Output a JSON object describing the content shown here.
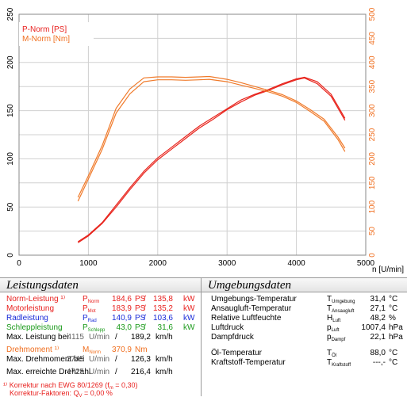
{
  "colors": {
    "p_curve": "#e8241c",
    "m_curve": "#f07a2a",
    "label_red": "#e8201e",
    "label_blue": "#1a2bd8",
    "label_green": "#1a9a1a",
    "label_orange": "#f06e1e",
    "grid": "#d0d0d0"
  },
  "chart_data": {
    "type": "line",
    "xlabel": "n [U/min]",
    "xlim": [
      0,
      5000
    ],
    "x_ticks": [
      "0",
      "1000",
      "2000",
      "3000",
      "4000",
      "5000"
    ],
    "y_left_lim": [
      0,
      250
    ],
    "y_left_ticks": [
      "0",
      "50",
      "100",
      "150",
      "200",
      "250"
    ],
    "y_right_lim": [
      0,
      500
    ],
    "y_right_ticks": [
      "0",
      "50",
      "100",
      "150",
      "200",
      "250",
      "300",
      "350",
      "400",
      "450",
      "500"
    ],
    "grid": true,
    "legend": {
      "position": "top-left",
      "entries": [
        "P-Norm [PS]",
        "M-Norm [Nm]"
      ]
    },
    "series": [
      {
        "name": "P-Norm [PS]",
        "axis": "left",
        "x": [
          850,
          1000,
          1200,
          1400,
          1600,
          1800,
          2000,
          2200,
          2400,
          2600,
          2800,
          3000,
          3200,
          3400,
          3600,
          3800,
          4000,
          4115,
          4300,
          4500,
          4700
        ],
        "y": [
          14,
          21,
          34,
          52,
          70,
          87,
          101,
          112,
          123,
          134,
          143,
          152,
          161,
          167,
          172,
          178,
          183,
          184.6,
          180,
          167,
          142
        ]
      },
      {
        "name": "P-Norm [PS] (2)",
        "axis": "left",
        "x": [
          850,
          1000,
          1200,
          1400,
          1600,
          1800,
          2000,
          2200,
          2400,
          2600,
          2800,
          3000,
          3200,
          3400,
          3600,
          3800,
          4000,
          4115,
          4300,
          4500,
          4700
        ],
        "y": [
          13,
          20,
          33,
          50,
          68,
          85,
          99,
          110,
          121,
          132,
          141,
          151,
          159,
          166,
          171,
          177,
          182,
          183.9,
          178,
          165,
          140
        ]
      },
      {
        "name": "M-Norm [Nm]",
        "axis": "right",
        "x": [
          850,
          1000,
          1200,
          1400,
          1600,
          1800,
          2000,
          2200,
          2400,
          2600,
          2745,
          3000,
          3200,
          3400,
          3600,
          3800,
          4000,
          4200,
          4400,
          4600,
          4700
        ],
        "y": [
          120,
          165,
          228,
          305,
          345,
          368,
          370,
          370,
          369,
          370,
          370.9,
          365,
          358,
          350,
          342,
          333,
          320,
          302,
          282,
          245,
          222
        ]
      },
      {
        "name": "M-Norm [Nm] (2)",
        "axis": "right",
        "x": [
          850,
          1000,
          1200,
          1400,
          1600,
          1800,
          2000,
          2200,
          2400,
          2600,
          2745,
          3000,
          3200,
          3400,
          3600,
          3800,
          4000,
          4200,
          4400,
          4600,
          4700
        ],
        "y": [
          112,
          158,
          220,
          295,
          335,
          360,
          364,
          364,
          363,
          364,
          365,
          360,
          353,
          346,
          339,
          330,
          317,
          298,
          278,
          240,
          215
        ]
      }
    ]
  },
  "leistung": {
    "title": "Leistungsdaten",
    "rows": [
      {
        "label": "Norm-Leistung ¹⁾",
        "sym": "P",
        "sub": "Norm",
        "v1": "184,6",
        "u1": "PS",
        "sep": "/",
        "v2": "135,8",
        "u2": "kW"
      },
      {
        "label": "Motorleistung",
        "sym": "P",
        "sub": "Mot",
        "v1": "183,9",
        "u1": "PS",
        "sep": "/",
        "v2": "135,2",
        "u2": "kW"
      },
      {
        "label": "Radleistung",
        "sym": "P",
        "sub": "Rad",
        "v1": "140,9",
        "u1": "PS",
        "sep": "/",
        "v2": "103,6",
        "u2": "kW"
      },
      {
        "label": "Schleppleistung",
        "sym": "P",
        "sub": "Schlepp",
        "v1": "43,0",
        "u1": "PS",
        "sep": "/",
        "v2": "31,6",
        "u2": "kW"
      }
    ],
    "max_leistung": {
      "label": "Max. Leistung bei",
      "rpm": "4115",
      "rpm_unit": "U/min",
      "sep": "/",
      "speed": "189,2",
      "speed_unit": "km/h"
    },
    "drehmoment": {
      "label": "Drehmoment ¹⁾",
      "sym": "M",
      "sub": "Norm",
      "value": "370,9",
      "unit": "Nm"
    },
    "max_drehmoment": {
      "label": "Max. Drehmoment bei",
      "rpm": "2745",
      "rpm_unit": "U/min",
      "sep": "/",
      "speed": "126,3",
      "speed_unit": "km/h"
    },
    "max_drehzahl": {
      "label": "Max. erreichte Drehzahl",
      "rpm": "4725",
      "rpm_unit": "U/min",
      "sep": "/",
      "speed": "216,4",
      "speed_unit": "km/h"
    },
    "footnote1": "¹⁾ Korrektur nach EWG 80/1269 (f",
    "footnote1_sub": "m",
    "footnote1_end": " = 0,30)",
    "footnote2": "Korrektur-Faktoren: Q",
    "footnote2_sub": "V",
    "footnote2_end": " =  0,00 %"
  },
  "umgebung": {
    "title": "Umgebungsdaten",
    "rows": [
      {
        "label": "Umgebungs-Temperatur",
        "sym": "T",
        "sub": "Umgebung",
        "value": "31,4",
        "unit": "°C"
      },
      {
        "label": "Ansaugluft-Temperatur",
        "sym": "T",
        "sub": "Ansaugluft",
        "value": "27,1",
        "unit": "°C"
      },
      {
        "label": "Relative Luftfeuchte",
        "sym": "H",
        "sub": "Luft",
        "value": "48,2",
        "unit": "%"
      },
      {
        "label": "Luftdruck",
        "sym": "p",
        "sub": "Luft",
        "value": "1007,4",
        "unit": "hPa"
      },
      {
        "label": "Dampfdruck",
        "sym": "p",
        "sub": "Dampf",
        "value": "22,1",
        "unit": "hPa"
      },
      {
        "label": "Öl-Temperatur",
        "sym": "T",
        "sub": "Öl",
        "value": "88,0",
        "unit": "°C"
      },
      {
        "label": "Kraftstoff-Temperatur",
        "sym": "T",
        "sub": "Kraftstoff",
        "value": "---,-",
        "unit": "°C"
      }
    ]
  }
}
